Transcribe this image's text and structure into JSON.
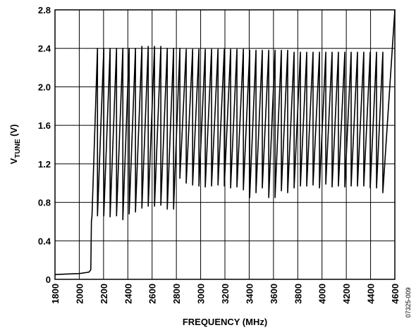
{
  "chart_data": {
    "type": "line",
    "xlabel": "FREQUENCY (MHz)",
    "ylabel": {
      "main": "V",
      "subscript": "TUNE",
      "suffix": " (V)"
    },
    "note": "07325-009",
    "color": "#000000",
    "grid": true,
    "xlim": [
      1800,
      4600
    ],
    "xticks": [
      1800,
      2000,
      2200,
      2400,
      2600,
      2800,
      3000,
      3200,
      3400,
      3600,
      3800,
      4000,
      4200,
      4400,
      4600
    ],
    "ylim": [
      0,
      2.8
    ],
    "yticks": [
      0,
      0.4,
      0.8,
      1.2,
      1.6,
      {
        "value": 2,
        "label": "2.0"
      },
      2.4,
      2.8
    ],
    "x": [
      1800,
      1900,
      2000,
      2080,
      2095,
      2100,
      2105,
      2150,
      2150,
      2202,
      2202,
      2254,
      2254,
      2307,
      2307,
      2359,
      2359,
      2411,
      2411,
      2463,
      2463,
      2516,
      2516,
      2568,
      2568,
      2620,
      2620,
      2672,
      2672,
      2725,
      2725,
      2777,
      2777,
      2829,
      2829,
      2881,
      2881,
      2934,
      2934,
      2986,
      2986,
      3038,
      3038,
      3090,
      3090,
      3143,
      3143,
      3195,
      3195,
      3247,
      3247,
      3299,
      3299,
      3352,
      3352,
      3404,
      3404,
      3456,
      3456,
      3508,
      3508,
      3561,
      3561,
      3613,
      3613,
      3665,
      3665,
      3717,
      3717,
      3770,
      3770,
      3822,
      3822,
      3874,
      3874,
      3926,
      3926,
      3979,
      3979,
      4031,
      4031,
      4083,
      4083,
      4135,
      4135,
      4188,
      4188,
      4240,
      4240,
      4292,
      4292,
      4344,
      4344,
      4397,
      4397,
      4449,
      4449,
      4501,
      4501,
      4600
    ],
    "values": [
      0.05,
      0.055,
      0.06,
      0.075,
      0.1,
      0.6,
      0.66,
      2.4,
      0.66,
      2.4,
      0.66,
      2.4,
      0.65,
      2.4,
      0.66,
      2.4,
      0.62,
      2.4,
      0.68,
      2.4,
      0.7,
      2.42,
      0.74,
      2.42,
      0.76,
      2.42,
      0.76,
      2.42,
      0.77,
      2.4,
      0.73,
      2.4,
      0.73,
      2.4,
      1.05,
      2.39,
      1.0,
      2.39,
      0.98,
      2.39,
      0.97,
      2.39,
      0.96,
      2.39,
      0.97,
      2.39,
      0.98,
      2.39,
      0.97,
      2.39,
      0.95,
      2.39,
      0.96,
      2.39,
      0.93,
      2.38,
      0.85,
      2.38,
      0.9,
      2.38,
      0.95,
      2.38,
      0.85,
      2.38,
      0.85,
      2.38,
      0.92,
      2.38,
      0.9,
      2.36,
      0.95,
      2.36,
      0.97,
      2.36,
      0.97,
      2.36,
      0.98,
      2.36,
      0.95,
      2.36,
      0.99,
      2.36,
      0.96,
      2.36,
      0.97,
      2.36,
      0.96,
      2.36,
      0.97,
      2.36,
      0.97,
      2.36,
      0.97,
      2.36,
      0.95,
      2.36,
      0.95,
      2.36,
      0.9,
      2.8
    ]
  }
}
